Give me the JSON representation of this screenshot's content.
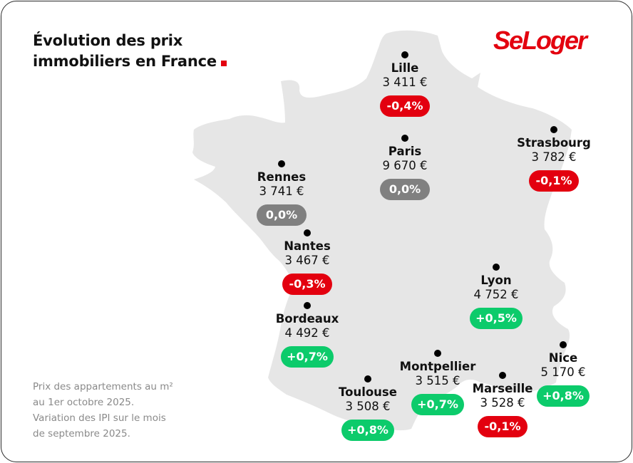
{
  "title": {
    "line1": "Évolution des prix",
    "line2": "immobiliers en France"
  },
  "brand": {
    "logo_text": "SeLoger",
    "accent": "#e3000f"
  },
  "colors": {
    "negative": "#e3000f",
    "positive": "#0ccb6b",
    "neutral": "#808080",
    "map_fill": "#e6e6e6"
  },
  "note": {
    "line1": "Prix des appartements au m²",
    "line2": "au 1er octobre 2025.",
    "line3": "Variation des IPI sur le mois",
    "line4": "de septembre 2025."
  },
  "cities": [
    {
      "name": "Lille",
      "price": "3 411 €",
      "change": "-0,4%",
      "trend": "neg"
    },
    {
      "name": "Paris",
      "price": "9 670 €",
      "change": "0,0%",
      "trend": "zero"
    },
    {
      "name": "Strasbourg",
      "price": "3 782 €",
      "change": "-0,1%",
      "trend": "neg"
    },
    {
      "name": "Rennes",
      "price": "3 741 €",
      "change": "0,0%",
      "trend": "zero"
    },
    {
      "name": "Nantes",
      "price": "3 467 €",
      "change": "-0,3%",
      "trend": "neg"
    },
    {
      "name": "Lyon",
      "price": "4 752 €",
      "change": "+0,5%",
      "trend": "pos"
    },
    {
      "name": "Bordeaux",
      "price": "4 492 €",
      "change": "+0,7%",
      "trend": "pos"
    },
    {
      "name": "Nice",
      "price": "5 170 €",
      "change": "+0,8%",
      "trend": "pos"
    },
    {
      "name": "Montpellier",
      "price": "3 515 €",
      "change": "+0,7%",
      "trend": "pos"
    },
    {
      "name": "Toulouse",
      "price": "3 508 €",
      "change": "+0,8%",
      "trend": "pos"
    },
    {
      "name": "Marseille",
      "price": "3 528 €",
      "change": "-0,1%",
      "trend": "neg"
    }
  ]
}
